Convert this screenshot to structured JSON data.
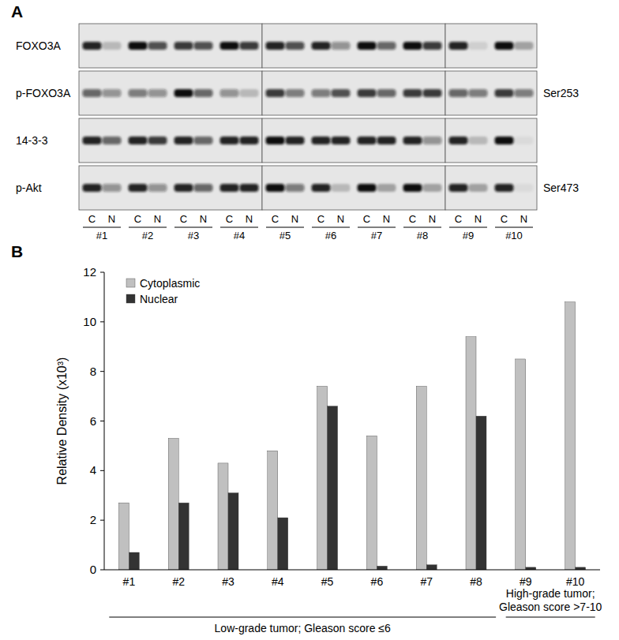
{
  "panel_a": {
    "label": "A",
    "samples": [
      [
        "#1",
        "#2",
        "#3",
        "#4"
      ],
      [
        "#5",
        "#6",
        "#7",
        "#8"
      ],
      [
        "#9",
        "#10"
      ]
    ],
    "lanes": [
      "C",
      "N"
    ],
    "rows": [
      {
        "label": "FOXO3A",
        "bands": [
          0.9,
          0.2,
          1,
          0.7,
          0.8,
          0.7,
          1,
          0.8,
          0.9,
          0.7,
          0.9,
          0.4,
          1,
          0.6,
          1,
          0.8,
          0.9,
          0.1,
          1,
          0.3
        ]
      },
      {
        "label": "p-FOXO3A",
        "site": "Ser253",
        "bands": [
          0.6,
          0.4,
          0.5,
          0.4,
          1,
          0.6,
          0.4,
          0.2,
          0.8,
          0.5,
          0.5,
          0.7,
          0.8,
          0.6,
          0.8,
          0.8,
          0.6,
          0.5,
          0.8,
          0.5
        ]
      },
      {
        "label": "14-3-3",
        "bands": [
          0.9,
          0.6,
          0.9,
          0.8,
          0.9,
          0.6,
          0.9,
          0.9,
          1,
          0.9,
          0.9,
          0.9,
          0.9,
          0.9,
          0.9,
          0.4,
          0.9,
          0.2,
          1,
          0.05
        ]
      },
      {
        "label": "p-Akt",
        "site": "Ser473",
        "bands": [
          0.9,
          0.4,
          0.9,
          0.4,
          0.9,
          0.6,
          0.9,
          0.9,
          1,
          0.5,
          0.9,
          0.2,
          1,
          0.3,
          1,
          0.3,
          0.9,
          0.3,
          0.9,
          0.05
        ]
      }
    ]
  },
  "chart_data": {
    "type": "bar",
    "title": "B",
    "categories": [
      "#1",
      "#2",
      "#3",
      "#4",
      "#5",
      "#6",
      "#7",
      "#8",
      "#9",
      "#10"
    ],
    "series": [
      {
        "name": "Cytoplasmic",
        "color": "#c0c0c0",
        "values": [
          2.7,
          5.3,
          4.3,
          4.8,
          7.4,
          5.4,
          7.4,
          9.4,
          8.5,
          10.8
        ]
      },
      {
        "name": "Nuclear",
        "color": "#333333",
        "values": [
          0.7,
          2.7,
          3.1,
          2.1,
          6.6,
          0.15,
          0.2,
          6.2,
          0.1,
          0.1
        ]
      }
    ],
    "y_label": "Relative Density (x10³)",
    "ylim": [
      0,
      12
    ],
    "yticks": [
      0,
      2,
      4,
      6,
      8,
      10,
      12
    ],
    "grid": false,
    "legend": "top-left",
    "annotations": [
      {
        "lines": [
          "Low-grade tumor; Gleason score ≤6"
        ],
        "categories": [
          "#1",
          "#2",
          "#3",
          "#4",
          "#5",
          "#6",
          "#7",
          "#8"
        ]
      },
      {
        "lines": [
          "High-grade tumor;",
          "Gleason score >7-10"
        ],
        "categories": [
          "#9",
          "#10"
        ]
      }
    ]
  }
}
